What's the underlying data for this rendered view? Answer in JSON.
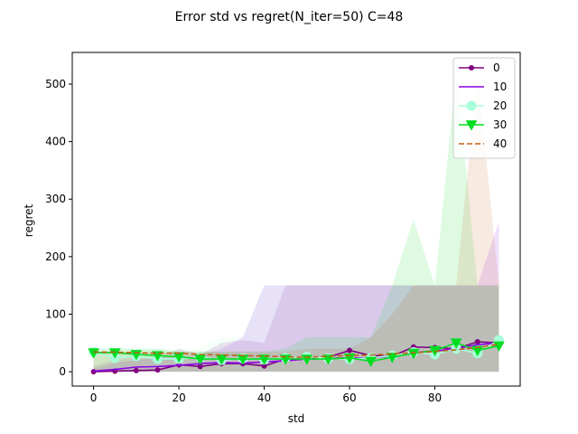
{
  "chart_data": {
    "type": "line",
    "title": "Error std vs regret(N_iter=50) C=48",
    "xlabel": "std",
    "ylabel": "regret",
    "xlim": [
      -5,
      100
    ],
    "ylim": [
      -25,
      555
    ],
    "xticks": [
      0,
      20,
      40,
      60,
      80
    ],
    "yticks": [
      0,
      100,
      200,
      300,
      400,
      500
    ],
    "legend_position": "top-right",
    "x": [
      0,
      5,
      10,
      15,
      20,
      25,
      30,
      35,
      40,
      45,
      50,
      55,
      60,
      65,
      70,
      75,
      80,
      85,
      90,
      95
    ],
    "series": [
      {
        "name": "0",
        "color": "#800080",
        "marker": "dot",
        "linestyle": "solid",
        "values": [
          0,
          1,
          2,
          3,
          12,
          9,
          14,
          14,
          10,
          22,
          22,
          25,
          37,
          28,
          27,
          43,
          42,
          40,
          52,
          50
        ],
        "band_low": [
          0,
          0,
          0,
          0,
          0,
          0,
          0,
          0,
          0,
          0,
          0,
          0,
          0,
          0,
          0,
          0,
          0,
          0,
          0,
          0
        ],
        "band_high": [
          10,
          20,
          25,
          25,
          40,
          30,
          50,
          55,
          50,
          150,
          150,
          150,
          150,
          150,
          150,
          150,
          150,
          150,
          150,
          150
        ]
      },
      {
        "name": "10",
        "color": "#8a00e6",
        "marker": "none",
        "linestyle": "solid",
        "values": [
          1,
          4,
          8,
          9,
          11,
          14,
          16,
          15,
          17,
          19,
          22,
          23,
          24,
          24,
          27,
          33,
          36,
          40,
          47,
          50
        ],
        "band_low": [
          0,
          0,
          0,
          0,
          0,
          0,
          0,
          0,
          0,
          0,
          0,
          0,
          0,
          0,
          0,
          0,
          0,
          0,
          0,
          0
        ],
        "band_high": [
          5,
          15,
          20,
          25,
          25,
          30,
          40,
          60,
          150,
          150,
          150,
          150,
          150,
          150,
          150,
          150,
          150,
          150,
          150,
          260
        ]
      },
      {
        "name": "20",
        "color": "#a8ffd9",
        "marker": "circle",
        "linestyle": "solid",
        "values": [
          34,
          24,
          27,
          22,
          22,
          25,
          20,
          23,
          21,
          24,
          26,
          23,
          22,
          24,
          28,
          34,
          30,
          40,
          32,
          55
        ],
        "band_low": [
          0,
          0,
          0,
          0,
          0,
          0,
          0,
          0,
          0,
          0,
          0,
          0,
          0,
          0,
          0,
          0,
          0,
          0,
          0,
          0
        ],
        "band_high": [
          40,
          45,
          40,
          40,
          40,
          40,
          60,
          60,
          150,
          150,
          150,
          150,
          150,
          150,
          150,
          150,
          150,
          150,
          150,
          150
        ]
      },
      {
        "name": "30",
        "color": "#00dd22",
        "marker": "triangle-down",
        "linestyle": "solid",
        "values": [
          33,
          33,
          30,
          28,
          26,
          22,
          22,
          22,
          22,
          22,
          22,
          22,
          24,
          18,
          25,
          32,
          37,
          50,
          37,
          45
        ],
        "band_low": [
          0,
          0,
          0,
          0,
          0,
          0,
          0,
          0,
          0,
          0,
          0,
          0,
          0,
          0,
          0,
          0,
          0,
          0,
          0,
          0
        ],
        "band_high": [
          40,
          40,
          40,
          40,
          35,
          35,
          35,
          35,
          35,
          40,
          60,
          60,
          60,
          60,
          150,
          265,
          150,
          520,
          150,
          150
        ]
      },
      {
        "name": "40",
        "color": "#c0601a",
        "marker": "none",
        "linestyle": "dashed",
        "values": [
          34,
          34,
          33,
          32,
          32,
          30,
          29,
          28,
          27,
          26,
          25,
          27,
          28,
          29,
          31,
          33,
          35,
          38,
          42,
          48
        ],
        "band_low": [
          0,
          0,
          0,
          0,
          0,
          0,
          0,
          0,
          0,
          0,
          0,
          0,
          0,
          0,
          0,
          0,
          0,
          0,
          0,
          0
        ],
        "band_high": [
          35,
          35,
          35,
          35,
          35,
          35,
          35,
          35,
          35,
          35,
          40,
          40,
          40,
          60,
          100,
          150,
          150,
          150,
          520,
          150
        ]
      }
    ]
  }
}
